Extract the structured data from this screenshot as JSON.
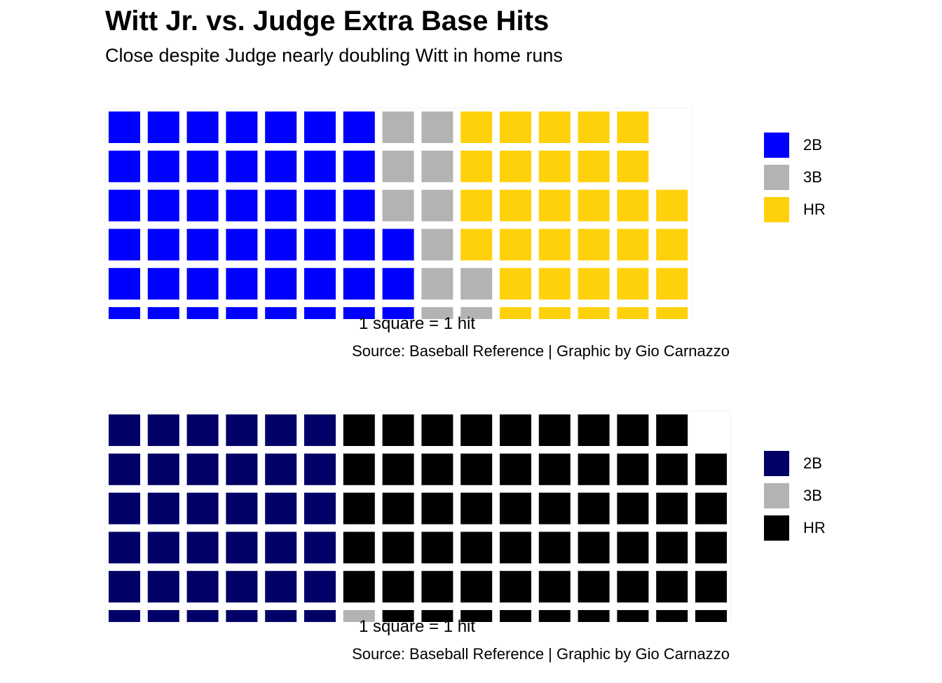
{
  "title": "Witt Jr. vs. Judge Extra Base Hits",
  "subtitle": "Close despite Judge nearly doubling Witt in home runs",
  "chart_data": [
    {
      "type": "waffle",
      "unit_caption": "1 square = 1 hit",
      "source": "Source: Baseball Reference | Graphic by Gio Carnazzo",
      "rows": 6,
      "categories": [
        "2B",
        "3B",
        "HR"
      ],
      "values": [
        45,
        11,
        32
      ],
      "colors": {
        "2B": "#0000FF",
        "3B": "#B3B3B3",
        "HR": "#FFD10A"
      },
      "legend": [
        {
          "label": "2B",
          "color": "#0000FF"
        },
        {
          "label": "3B",
          "color": "#B3B3B3"
        },
        {
          "label": "HR",
          "color": "#FFD10A"
        }
      ],
      "legend_position": "right"
    },
    {
      "type": "waffle",
      "unit_caption": "1 square = 1 hit",
      "source": "Source: Baseball Reference | Graphic by Gio Carnazzo",
      "rows": 6,
      "categories": [
        "2B",
        "3B",
        "HR"
      ],
      "values": [
        36,
        1,
        58
      ],
      "colors": {
        "2B": "#000066",
        "3B": "#B3B3B3",
        "HR": "#000000"
      },
      "legend": [
        {
          "label": "2B",
          "color": "#000066"
        },
        {
          "label": "3B",
          "color": "#B3B3B3"
        },
        {
          "label": "HR",
          "color": "#000000"
        }
      ],
      "legend_position": "right"
    }
  ]
}
